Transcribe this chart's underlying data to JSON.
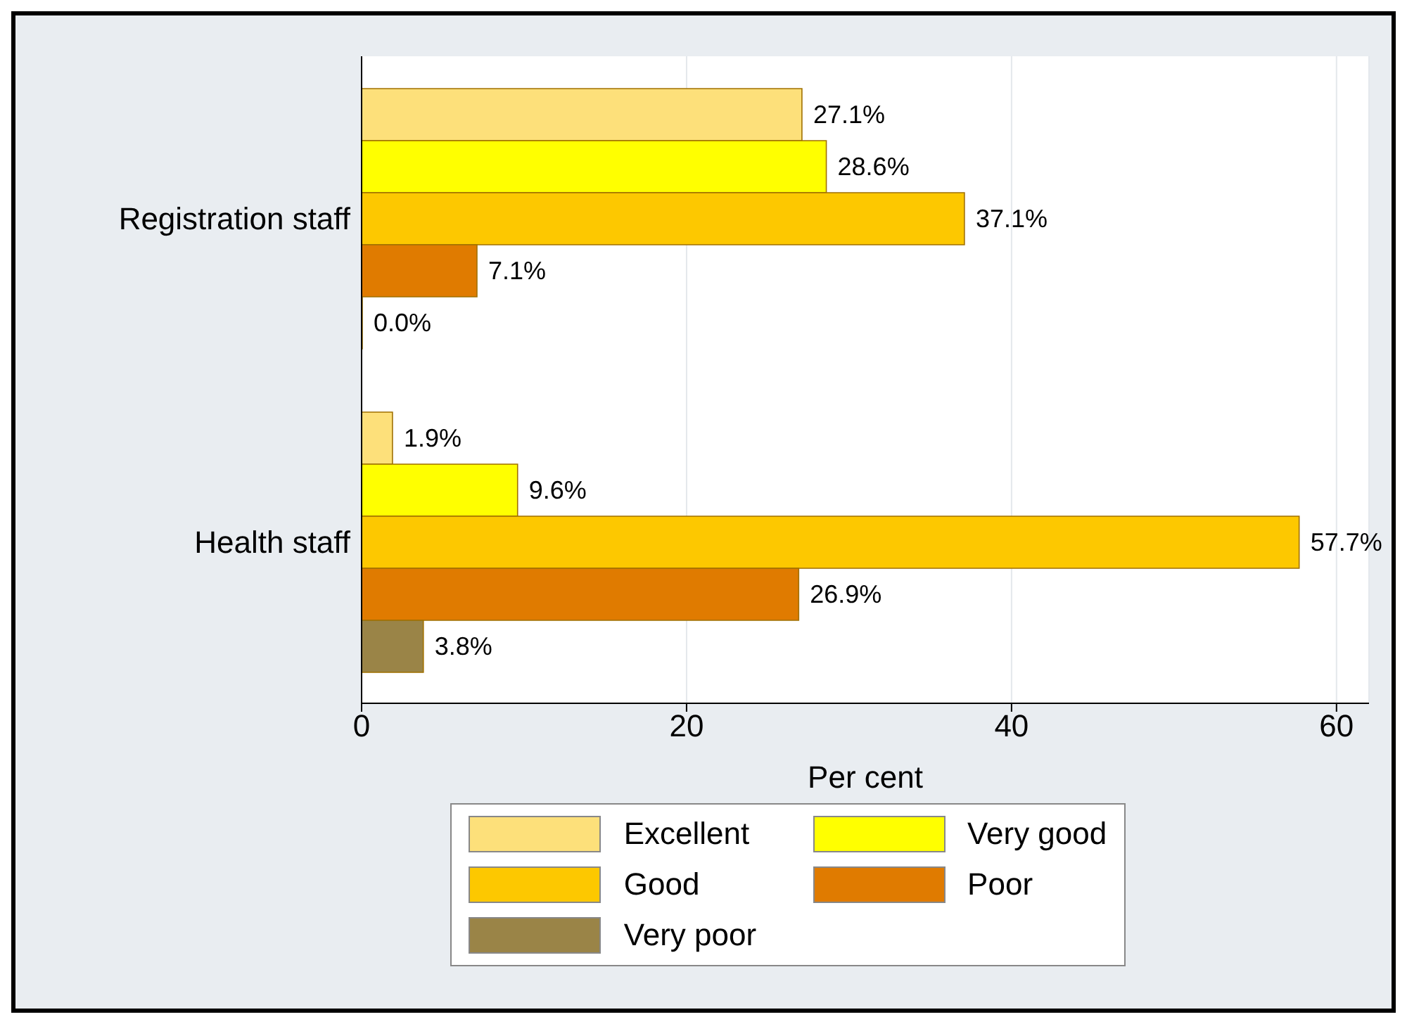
{
  "chart_data": {
    "type": "bar",
    "orientation": "horizontal",
    "categories": [
      "Registration staff",
      "Health staff"
    ],
    "xlabel": "Per cent",
    "xlim": [
      0,
      62
    ],
    "xticks": [
      0,
      20,
      40,
      60
    ],
    "grid": "x",
    "legend": "bottom",
    "series": [
      {
        "name": "Excellent",
        "color": "#fde07a",
        "values": [
          27.1,
          1.9
        ],
        "value_labels": [
          "27.1%",
          "1.9%"
        ]
      },
      {
        "name": "Very good",
        "color": "#ffff00",
        "values": [
          28.6,
          9.6
        ],
        "value_labels": [
          "28.6%",
          "9.6%"
        ]
      },
      {
        "name": "Good",
        "color": "#fdc800",
        "values": [
          37.1,
          57.7
        ],
        "value_labels": [
          "37.1%",
          "57.7%"
        ]
      },
      {
        "name": "Poor",
        "color": "#e07b00",
        "values": [
          7.1,
          26.9
        ],
        "value_labels": [
          "7.1%",
          "26.9%"
        ]
      },
      {
        "name": "Very poor",
        "color": "#9a8447",
        "values": [
          0,
          3.8
        ],
        "value_labels": [
          "0.0%",
          "3.8%"
        ]
      }
    ]
  }
}
